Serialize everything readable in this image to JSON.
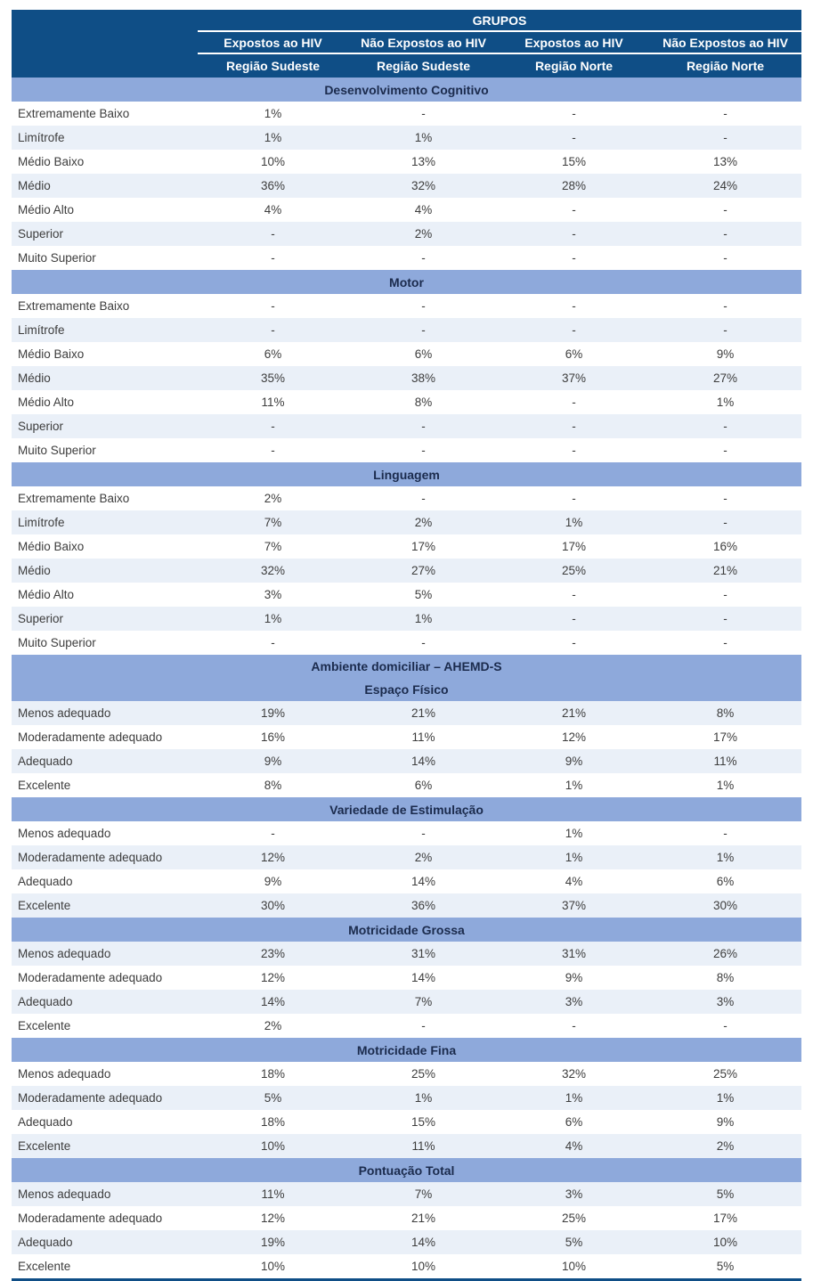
{
  "colors": {
    "header-bg": "#0F4E86",
    "band-bg": "#8EA9DB",
    "band-text": "#1B2B4D",
    "alt-row-bg": "#EAF0F8"
  },
  "table": {
    "grupos_label": "GRUPOS",
    "columns": [
      {
        "group": "Expostos ao HIV",
        "region": "Região Sudeste"
      },
      {
        "group": "Não Expostos ao HIV",
        "region": "Região Sudeste"
      },
      {
        "group": "Expostos ao HIV",
        "region": "Região Norte"
      },
      {
        "group": "Não Expostos ao HIV",
        "region": "Região Norte"
      }
    ],
    "sections": [
      {
        "title": "Desenvolvimento Cognitivo",
        "rows": [
          {
            "label": "Extremamente Baixo",
            "values": [
              "1%",
              "-",
              "-",
              "-"
            ]
          },
          {
            "label": "Limítrofe",
            "values": [
              "1%",
              "1%",
              "-",
              "-"
            ]
          },
          {
            "label": "Médio Baixo",
            "values": [
              "10%",
              "13%",
              "15%",
              "13%"
            ]
          },
          {
            "label": "Médio",
            "values": [
              "36%",
              "32%",
              "28%",
              "24%"
            ]
          },
          {
            "label": "Médio Alto",
            "values": [
              "4%",
              "4%",
              "-",
              "-"
            ]
          },
          {
            "label": "Superior",
            "values": [
              "-",
              "2%",
              "-",
              "-"
            ]
          },
          {
            "label": "Muito Superior",
            "values": [
              "-",
              "-",
              "-",
              "-"
            ]
          }
        ]
      },
      {
        "title": "Motor",
        "rows": [
          {
            "label": "Extremamente Baixo",
            "values": [
              "-",
              "-",
              "-",
              "-"
            ]
          },
          {
            "label": "Limítrofe",
            "values": [
              "-",
              "-",
              "-",
              "-"
            ]
          },
          {
            "label": "Médio Baixo",
            "values": [
              "6%",
              "6%",
              "6%",
              "9%"
            ]
          },
          {
            "label": "Médio",
            "values": [
              "35%",
              "38%",
              "37%",
              "27%"
            ]
          },
          {
            "label": "Médio Alto",
            "values": [
              "11%",
              "8%",
              "-",
              "1%"
            ]
          },
          {
            "label": "Superior",
            "values": [
              "-",
              "-",
              "-",
              "-"
            ]
          },
          {
            "label": "Muito Superior",
            "values": [
              "-",
              "-",
              "-",
              "-"
            ]
          }
        ]
      },
      {
        "title": "Linguagem",
        "rows": [
          {
            "label": "Extremamente Baixo",
            "values": [
              "2%",
              "-",
              "-",
              "-"
            ]
          },
          {
            "label": "Limítrofe",
            "values": [
              "7%",
              "2%",
              "1%",
              "-"
            ]
          },
          {
            "label": "Médio Baixo",
            "values": [
              "7%",
              "17%",
              "17%",
              "16%"
            ]
          },
          {
            "label": "Médio",
            "values": [
              "32%",
              "27%",
              "25%",
              "21%"
            ]
          },
          {
            "label": "Médio Alto",
            "values": [
              "3%",
              "5%",
              "-",
              "-"
            ]
          },
          {
            "label": "Superior",
            "values": [
              "1%",
              "1%",
              "-",
              "-"
            ]
          },
          {
            "label": "Muito Superior",
            "values": [
              "-",
              "-",
              "-",
              "-"
            ]
          }
        ]
      },
      {
        "title": "Ambiente domiciliar – AHEMD-S",
        "subtitle": "Espaço Físico",
        "rows": [
          {
            "label": "Menos adequado",
            "values": [
              "19%",
              "21%",
              "21%",
              "8%"
            ]
          },
          {
            "label": "Moderadamente adequado",
            "values": [
              "16%",
              "11%",
              "12%",
              "17%"
            ]
          },
          {
            "label": "Adequado",
            "values": [
              "9%",
              "14%",
              "9%",
              "11%"
            ]
          },
          {
            "label": "Excelente",
            "values": [
              "8%",
              "6%",
              "1%",
              "1%"
            ]
          }
        ]
      },
      {
        "title": "Variedade de Estimulação",
        "rows": [
          {
            "label": "Menos adequado",
            "values": [
              "-",
              "-",
              "1%",
              "-"
            ]
          },
          {
            "label": "Moderadamente adequado",
            "values": [
              "12%",
              "2%",
              "1%",
              "1%"
            ]
          },
          {
            "label": "Adequado",
            "values": [
              "9%",
              "14%",
              "4%",
              "6%"
            ]
          },
          {
            "label": "Excelente",
            "values": [
              "30%",
              "36%",
              "37%",
              "30%"
            ]
          }
        ]
      },
      {
        "title": "Motricidade Grossa",
        "rows": [
          {
            "label": "Menos adequado",
            "values": [
              "23%",
              "31%",
              "31%",
              "26%"
            ]
          },
          {
            "label": "Moderadamente adequado",
            "values": [
              "12%",
              "14%",
              "9%",
              "8%"
            ]
          },
          {
            "label": "Adequado",
            "values": [
              "14%",
              "7%",
              "3%",
              "3%"
            ]
          },
          {
            "label": "Excelente",
            "values": [
              "2%",
              "-",
              "-",
              "-"
            ]
          }
        ]
      },
      {
        "title": "Motricidade Fina",
        "rows": [
          {
            "label": "Menos adequado",
            "values": [
              "18%",
              "25%",
              "32%",
              "25%"
            ]
          },
          {
            "label": "Moderadamente adequado",
            "values": [
              "5%",
              "1%",
              "1%",
              "1%"
            ]
          },
          {
            "label": "Adequado",
            "values": [
              "18%",
              "15%",
              "6%",
              "9%"
            ]
          },
          {
            "label": "Excelente",
            "values": [
              "10%",
              "11%",
              "4%",
              "2%"
            ]
          }
        ]
      },
      {
        "title": "Pontuação Total",
        "rows": [
          {
            "label": "Menos adequado",
            "values": [
              "11%",
              "7%",
              "3%",
              "5%"
            ]
          },
          {
            "label": "Moderadamente adequado",
            "values": [
              "12%",
              "21%",
              "25%",
              "17%"
            ]
          },
          {
            "label": "Adequado",
            "values": [
              "19%",
              "14%",
              "5%",
              "10%"
            ]
          },
          {
            "label": "Excelente",
            "values": [
              "10%",
              "10%",
              "10%",
              "5%"
            ]
          }
        ]
      }
    ]
  }
}
